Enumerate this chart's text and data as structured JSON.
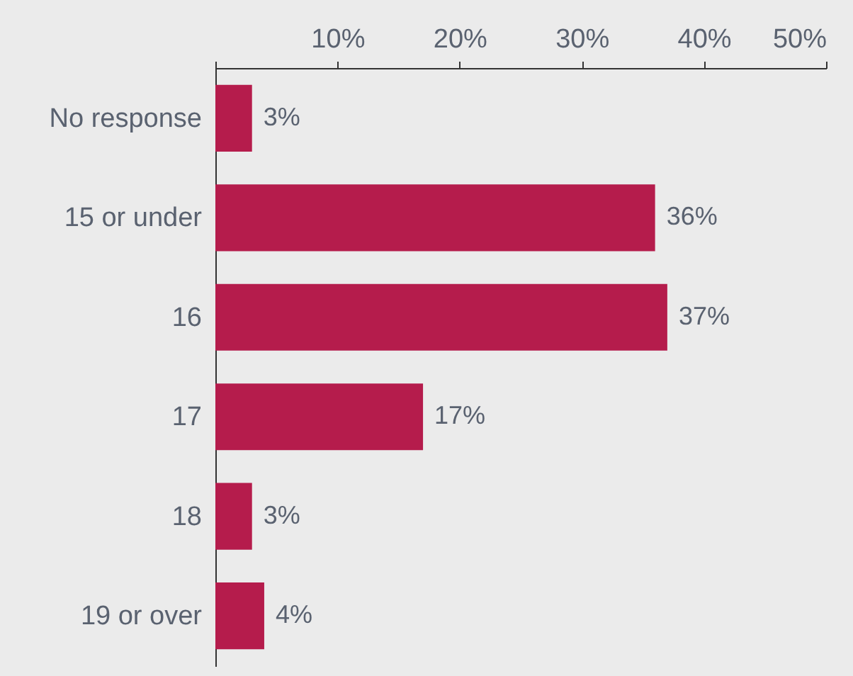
{
  "chart_data": {
    "type": "bar",
    "orientation": "horizontal",
    "categories": [
      "No response",
      "15 or under",
      "16",
      "17",
      "18",
      "19 or over"
    ],
    "values": [
      3,
      36,
      37,
      17,
      3,
      4
    ],
    "value_labels": [
      "3%",
      "36%",
      "37%",
      "17%",
      "3%",
      "4%"
    ],
    "color": "#b51c4c",
    "xlim": [
      0,
      50
    ],
    "xticks": [
      {
        "value": 0,
        "label": null
      },
      {
        "value": 10,
        "label": "10%"
      },
      {
        "value": 20,
        "label": "20%"
      },
      {
        "value": 30,
        "label": "30%"
      },
      {
        "value": 40,
        "label": "40%"
      },
      {
        "value": 50,
        "label": "50%"
      }
    ],
    "grid": false
  }
}
